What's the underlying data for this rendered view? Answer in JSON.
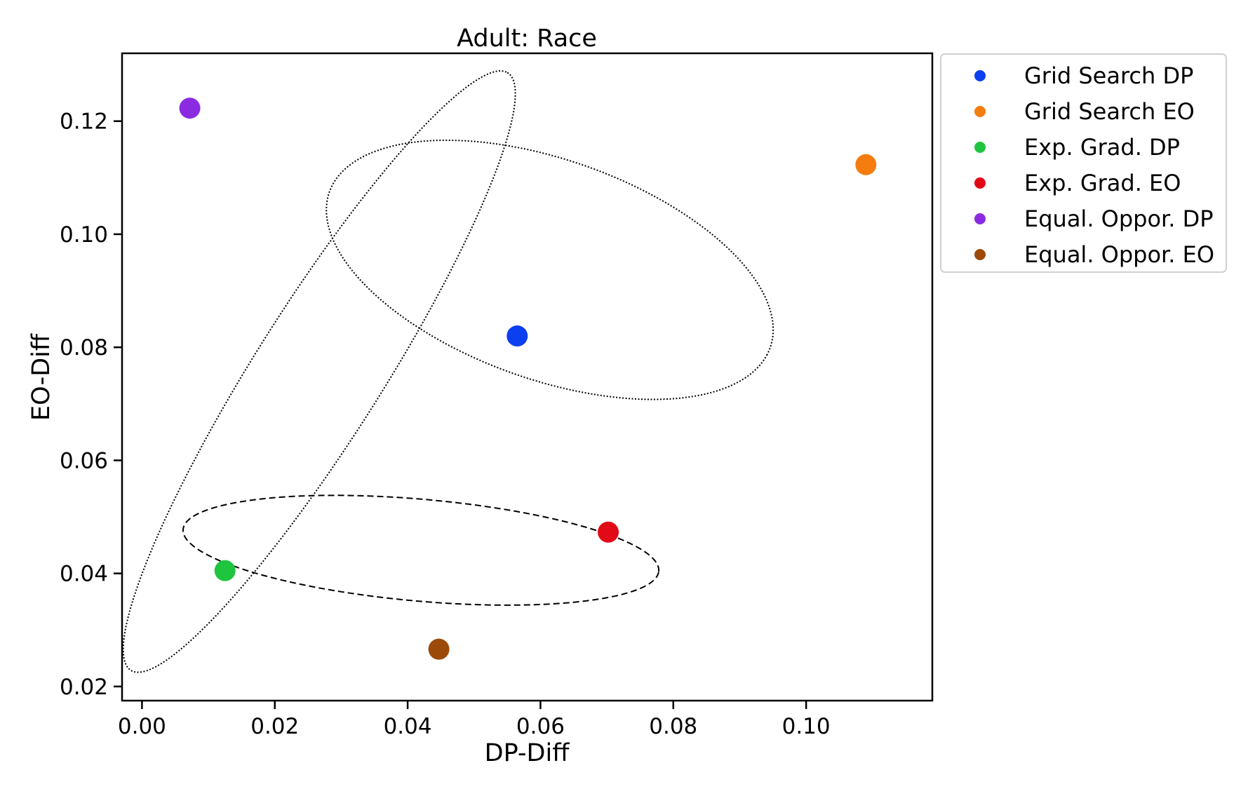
{
  "chart_data": {
    "type": "scatter",
    "title": "Adult: Race",
    "xlabel": "DP-Diff",
    "ylabel": "EO-Diff",
    "xlim": [
      -0.003,
      0.119
    ],
    "ylim": [
      0.0175,
      0.132
    ],
    "xticks": [
      0.0,
      0.02,
      0.04,
      0.06,
      0.08,
      0.1
    ],
    "xtick_labels": [
      "0.00",
      "0.02",
      "0.04",
      "0.06",
      "0.08",
      "0.10"
    ],
    "yticks": [
      0.02,
      0.04,
      0.06,
      0.08,
      0.1,
      0.12
    ],
    "ytick_labels": [
      "0.02",
      "0.04",
      "0.06",
      "0.08",
      "0.10",
      "0.12"
    ],
    "grid": false,
    "legend_position": "outside-right-top",
    "series": [
      {
        "name": "Grid Search DP",
        "color": "#0b3ff0",
        "x": 0.0565,
        "y": 0.082
      },
      {
        "name": "Grid Search EO",
        "color": "#f57c0f",
        "x": 0.109,
        "y": 0.1123
      },
      {
        "name": "Exp. Grad. DP",
        "color": "#1fc43f",
        "x": 0.0125,
        "y": 0.0405
      },
      {
        "name": "Exp. Grad. EO",
        "color": "#e30a17",
        "x": 0.0702,
        "y": 0.0473
      },
      {
        "name": "Equal. Oppor. DP",
        "color": "#8a2be2",
        "x": 0.0072,
        "y": 0.1223
      },
      {
        "name": "Equal. Oppor. EO",
        "color": "#9c4a0a",
        "x": 0.0447,
        "y": 0.0266
      }
    ],
    "annotations": [
      {
        "shape": "ellipse",
        "line_style": "dotted",
        "cx": 0.0614,
        "cy": 0.0937,
        "rx": 0.036,
        "ry": 0.019,
        "angle_deg": -24.8
      },
      {
        "shape": "ellipse",
        "line_style": "dotted",
        "cx": 0.0267,
        "cy": 0.0757,
        "rx": 0.06,
        "ry": 0.01,
        "angle_deg": 62.0
      },
      {
        "shape": "ellipse",
        "line_style": "dashed",
        "cx": 0.042,
        "cy": 0.0441,
        "rx": 0.036,
        "ry": 0.009,
        "angle_deg": -6.0
      }
    ]
  }
}
